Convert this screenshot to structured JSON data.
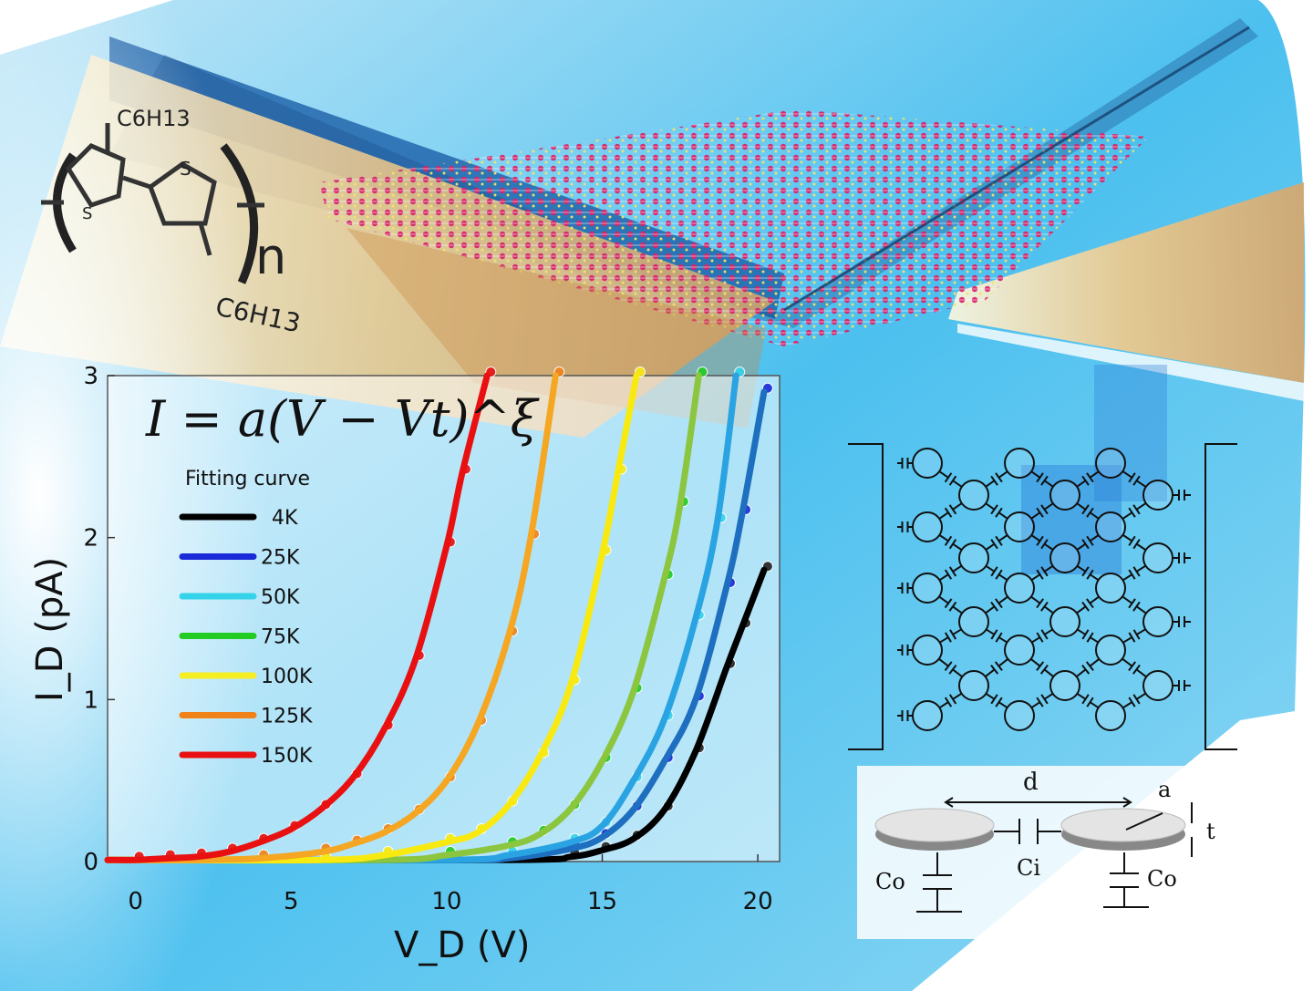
{
  "illustration": {
    "polymer": {
      "side_chain_top": "C6H13",
      "side_chain_bottom": "C6H13",
      "sulfur_left": "S",
      "sulfur_right": "S",
      "repeat_subscript": "n"
    },
    "circuit": {
      "distance_label": "d",
      "radius_label": "a",
      "thickness_label": "t",
      "inner_capacitance_label": "Ci",
      "outer_capacitance_label_left": "Co",
      "outer_capacitance_label_right": "Co"
    },
    "colors": {
      "sky": "#3fb4ec",
      "gold": "#e9b56a",
      "lattice": "#d8246a"
    }
  },
  "chart_data": {
    "type": "line",
    "equation": "I = a(V − Vt)^ξ",
    "xlabel": "V_D (V)",
    "ylabel": "I_D (pA)",
    "xlim": [
      -0.9,
      20.7
    ],
    "ylim": [
      0,
      3
    ],
    "xticks": [
      "0",
      "5",
      "10",
      "15",
      "20"
    ],
    "yticks": [
      "0",
      "1",
      "2",
      "3"
    ],
    "grid": false,
    "legend_title": "Fitting curve",
    "legend_position": "left",
    "series": [
      {
        "name": "4K",
        "legend_color": "#000000",
        "curve_color": "#000000",
        "marker_color": "#222222",
        "x": [
          -0.9,
          12,
          14,
          15,
          16,
          17,
          18,
          19,
          19.5,
          20.2
        ],
        "y": [
          0.01,
          0.01,
          0.03,
          0.07,
          0.14,
          0.32,
          0.68,
          1.2,
          1.45,
          1.8
        ]
      },
      {
        "name": "25K",
        "legend_color": "#1a2ad8",
        "curve_color": "#1f6fc0",
        "marker_color": "#1a2ad8",
        "x": [
          -0.9,
          10,
          12,
          14,
          15,
          16,
          17,
          18,
          19,
          19.5,
          20.2
        ],
        "y": [
          0.01,
          0.01,
          0.02,
          0.08,
          0.15,
          0.32,
          0.62,
          1.0,
          1.7,
          2.15,
          2.9
        ]
      },
      {
        "name": "50K",
        "legend_color": "#35d3ea",
        "curve_color": "#29a3e2",
        "marker_color": "#35d3ea",
        "x": [
          -0.9,
          10,
          12,
          14,
          15,
          16,
          17,
          18,
          18.7,
          19.3
        ],
        "y": [
          0.01,
          0.01,
          0.04,
          0.12,
          0.22,
          0.5,
          0.88,
          1.5,
          2.1,
          3
        ]
      },
      {
        "name": "75K",
        "legend_color": "#22cc22",
        "curve_color": "#8cc63f",
        "marker_color": "#22cc22",
        "x": [
          -0.9,
          8,
          10,
          12,
          13,
          14,
          15,
          16,
          17,
          17.5,
          18.1
        ],
        "y": [
          0.01,
          0.01,
          0.04,
          0.1,
          0.17,
          0.33,
          0.62,
          1.05,
          1.75,
          2.2,
          3
        ]
      },
      {
        "name": "100K",
        "legend_color": "#f5ee22",
        "curve_color": "#f8ea10",
        "marker_color": "#f8ea10",
        "x": [
          -0.9,
          6,
          8,
          10,
          11,
          12,
          13,
          14,
          15,
          15.5,
          16.1
        ],
        "y": [
          0.01,
          0.01,
          0.04,
          0.12,
          0.18,
          0.35,
          0.65,
          1.1,
          1.9,
          2.4,
          3
        ]
      },
      {
        "name": "125K",
        "legend_color": "#f0821a",
        "curve_color": "#f5a623",
        "marker_color": "#f0821a",
        "x": [
          -0.9,
          2,
          4,
          6,
          7,
          8,
          9,
          10,
          11,
          12,
          12.7,
          13.5
        ],
        "y": [
          0.01,
          0.01,
          0.02,
          0.06,
          0.11,
          0.18,
          0.3,
          0.5,
          0.85,
          1.4,
          2.0,
          3
        ]
      },
      {
        "name": "150K",
        "legend_color": "#e81010",
        "curve_color": "#e81010",
        "marker_color": "#e81010",
        "x": [
          -0.9,
          0,
          1,
          2,
          3,
          4,
          5,
          6,
          7,
          8,
          9,
          10,
          10.5,
          11.3
        ],
        "y": [
          0.01,
          0.01,
          0.02,
          0.03,
          0.06,
          0.12,
          0.2,
          0.33,
          0.52,
          0.82,
          1.25,
          1.95,
          2.4,
          3
        ]
      }
    ]
  }
}
